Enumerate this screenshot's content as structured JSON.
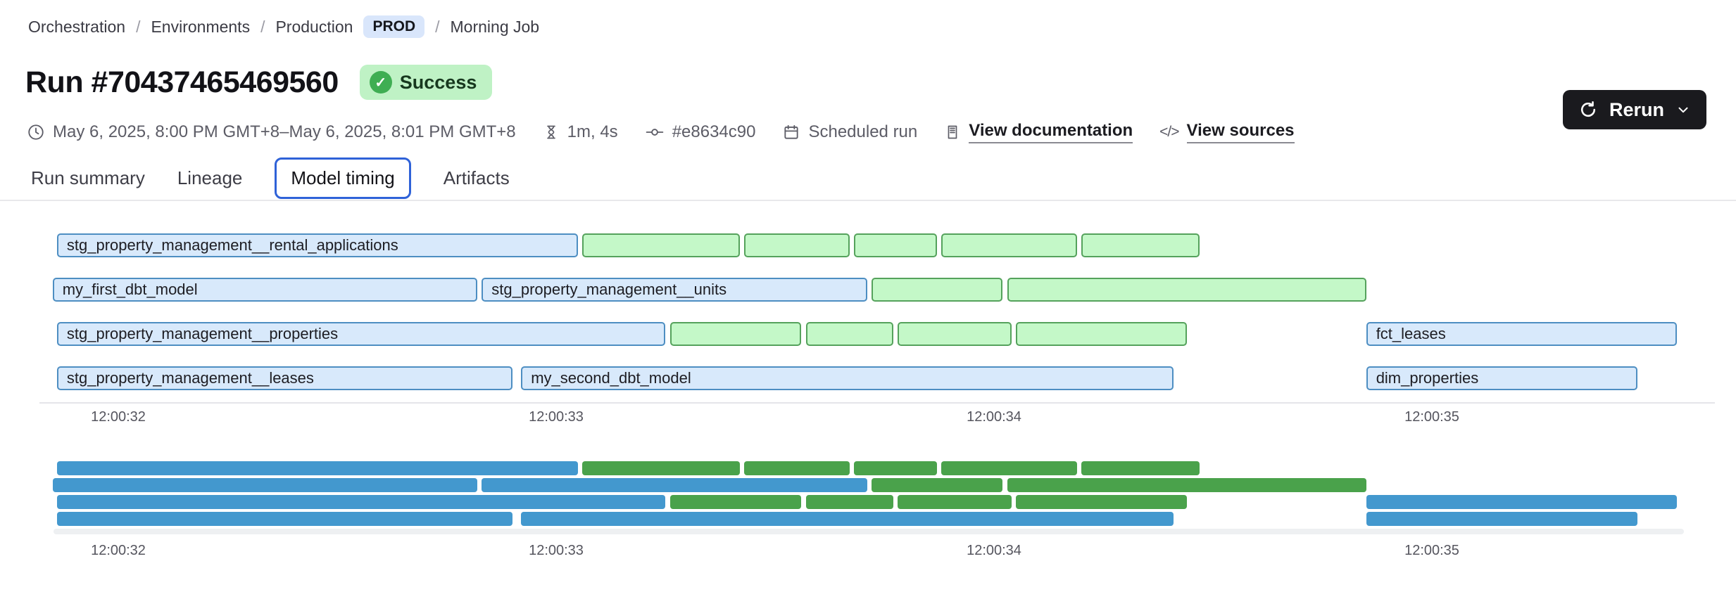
{
  "breadcrumb": {
    "separator": "/",
    "items": [
      "Orchestration",
      "Environments",
      "Production",
      "Morning Job"
    ],
    "env_badge": "PROD"
  },
  "header": {
    "title": "Run #70437465469560",
    "status_label": "Success",
    "check_glyph": "✓"
  },
  "meta": {
    "time_range": "May 6, 2025, 8:00 PM GMT+8–May 6, 2025, 8:01 PM GMT+8",
    "duration": "1m, 4s",
    "commit_hash": "#e8634c90",
    "run_type": "Scheduled run",
    "documentation_link": "View documentation",
    "sources_link": "View sources",
    "code_glyph": "</>"
  },
  "actions": {
    "rerun_label": "Rerun"
  },
  "tabs": [
    {
      "label": "Run summary",
      "active": false
    },
    {
      "label": "Lineage",
      "active": false
    },
    {
      "label": "Model timing",
      "active": true
    },
    {
      "label": "Artifacts",
      "active": false
    }
  ],
  "colors": {
    "model_bar_fill": "#d8e9fb",
    "model_bar_border": "#4d8ec2",
    "test_bar_fill": "#c4f8c8",
    "test_bar_border": "#55a25c",
    "minimap_blue": "#4398ce",
    "minimap_green": "#4aa24b",
    "status_badge_bg": "#bff2c5",
    "status_check_bg": "#3fae53",
    "env_badge_bg": "#d9e6fb",
    "tab_active_border": "#2f62d8",
    "rerun_bg": "#1a1a1e"
  },
  "chart_data": {
    "type": "gantt",
    "title": "Model timing",
    "time_axis": {
      "ticks": [
        {
          "label": "12:00:32",
          "t": 32
        },
        {
          "label": "12:00:33",
          "t": 33
        },
        {
          "label": "12:00:34",
          "t": 34
        },
        {
          "label": "12:00:35",
          "t": 35
        }
      ]
    },
    "rows": [
      {
        "bars": [
          {
            "label": "stg_property_management__rental_applications",
            "color": "blue",
            "start": 31.86,
            "end": 33.05
          },
          {
            "label": "",
            "color": "green",
            "start": 33.06,
            "end": 33.42
          },
          {
            "label": "",
            "color": "green",
            "start": 33.43,
            "end": 33.67
          },
          {
            "label": "",
            "color": "green",
            "start": 33.68,
            "end": 33.87
          },
          {
            "label": "",
            "color": "green",
            "start": 33.88,
            "end": 34.19
          },
          {
            "label": "",
            "color": "green",
            "start": 34.2,
            "end": 34.47
          }
        ]
      },
      {
        "bars": [
          {
            "label": "my_first_dbt_model",
            "color": "blue",
            "start": 31.85,
            "end": 32.82
          },
          {
            "label": "stg_property_management__units",
            "color": "blue",
            "start": 32.83,
            "end": 33.71
          },
          {
            "label": "",
            "color": "green",
            "start": 33.72,
            "end": 34.02
          },
          {
            "label": "",
            "color": "green",
            "start": 34.03,
            "end": 34.85
          }
        ]
      },
      {
        "bars": [
          {
            "label": "stg_property_management__properties",
            "color": "blue",
            "start": 31.86,
            "end": 33.25
          },
          {
            "label": "",
            "color": "green",
            "start": 33.26,
            "end": 33.56
          },
          {
            "label": "",
            "color": "green",
            "start": 33.57,
            "end": 33.77
          },
          {
            "label": "",
            "color": "green",
            "start": 33.78,
            "end": 34.04
          },
          {
            "label": "",
            "color": "green",
            "start": 34.05,
            "end": 34.44
          },
          {
            "label": "fct_leases",
            "color": "blue",
            "start": 34.85,
            "end": 35.56
          }
        ]
      },
      {
        "bars": [
          {
            "label": "stg_property_management__leases",
            "color": "blue",
            "start": 31.86,
            "end": 32.9
          },
          {
            "label": "my_second_dbt_model",
            "color": "blue",
            "start": 32.92,
            "end": 34.41
          },
          {
            "label": "dim_properties",
            "color": "blue",
            "start": 34.85,
            "end": 35.47
          }
        ]
      }
    ]
  }
}
